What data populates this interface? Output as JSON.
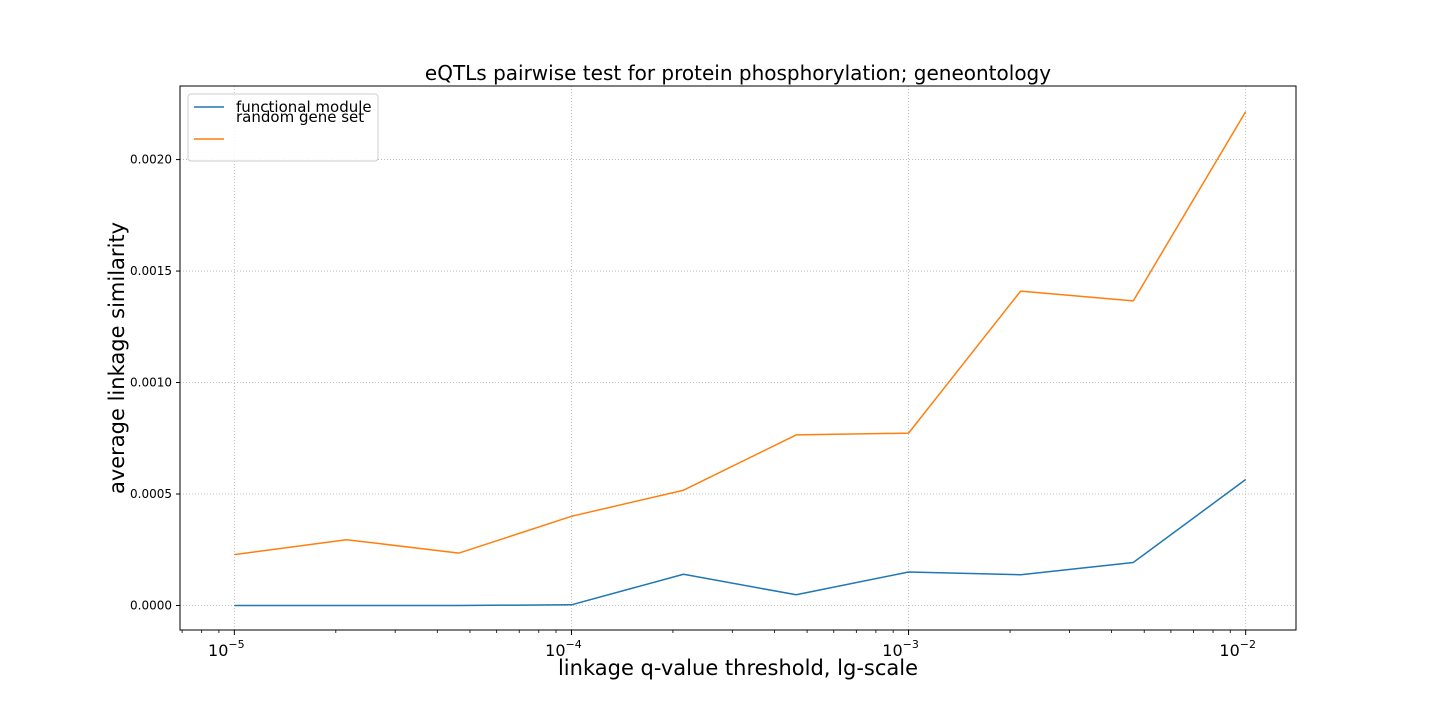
{
  "chart_data": {
    "type": "line",
    "title": "eQTLs pairwise test for protein phosphorylation; geneontology",
    "xlabel": "linkage q-value threshold, lg-scale",
    "ylabel": "average linkage similarity",
    "xscale": "log",
    "xlim": [
      6.9e-06,
      0.0141
    ],
    "ylim": [
      -0.00011,
      0.00233
    ],
    "grid": true,
    "legend_position": "top-left",
    "x": [
      1e-05,
      2.15e-05,
      4.64e-05,
      0.0001,
      0.000215,
      0.000464,
      0.001,
      0.00215,
      0.00464,
      0.01
    ],
    "xticks": [
      {
        "value": 1e-05,
        "base": "10",
        "exp": "−5"
      },
      {
        "value": 0.0001,
        "base": "10",
        "exp": "−4"
      },
      {
        "value": 0.001,
        "base": "10",
        "exp": "−3"
      },
      {
        "value": 0.01,
        "base": "10",
        "exp": "−2"
      }
    ],
    "yticks": [
      {
        "value": 0.0,
        "label": "0.0000"
      },
      {
        "value": 0.0005,
        "label": "0.0005"
      },
      {
        "value": 0.001,
        "label": "0.0010"
      },
      {
        "value": 0.0015,
        "label": "0.0015"
      },
      {
        "value": 0.002,
        "label": "0.0020"
      }
    ],
    "series": [
      {
        "name": "functional module",
        "color": "#1f77b4",
        "values": [
          0.0,
          0.0,
          0.0,
          3e-06,
          0.00014,
          4.8e-05,
          0.00015,
          0.000138,
          0.000193,
          0.000565
        ]
      },
      {
        "name": "random gene set",
        "color": "#ff7f0e",
        "values": [
          0.000228,
          0.000295,
          0.000235,
          0.0004,
          0.000517,
          0.000765,
          0.000773,
          0.00141,
          0.001366,
          0.002215
        ]
      }
    ]
  }
}
